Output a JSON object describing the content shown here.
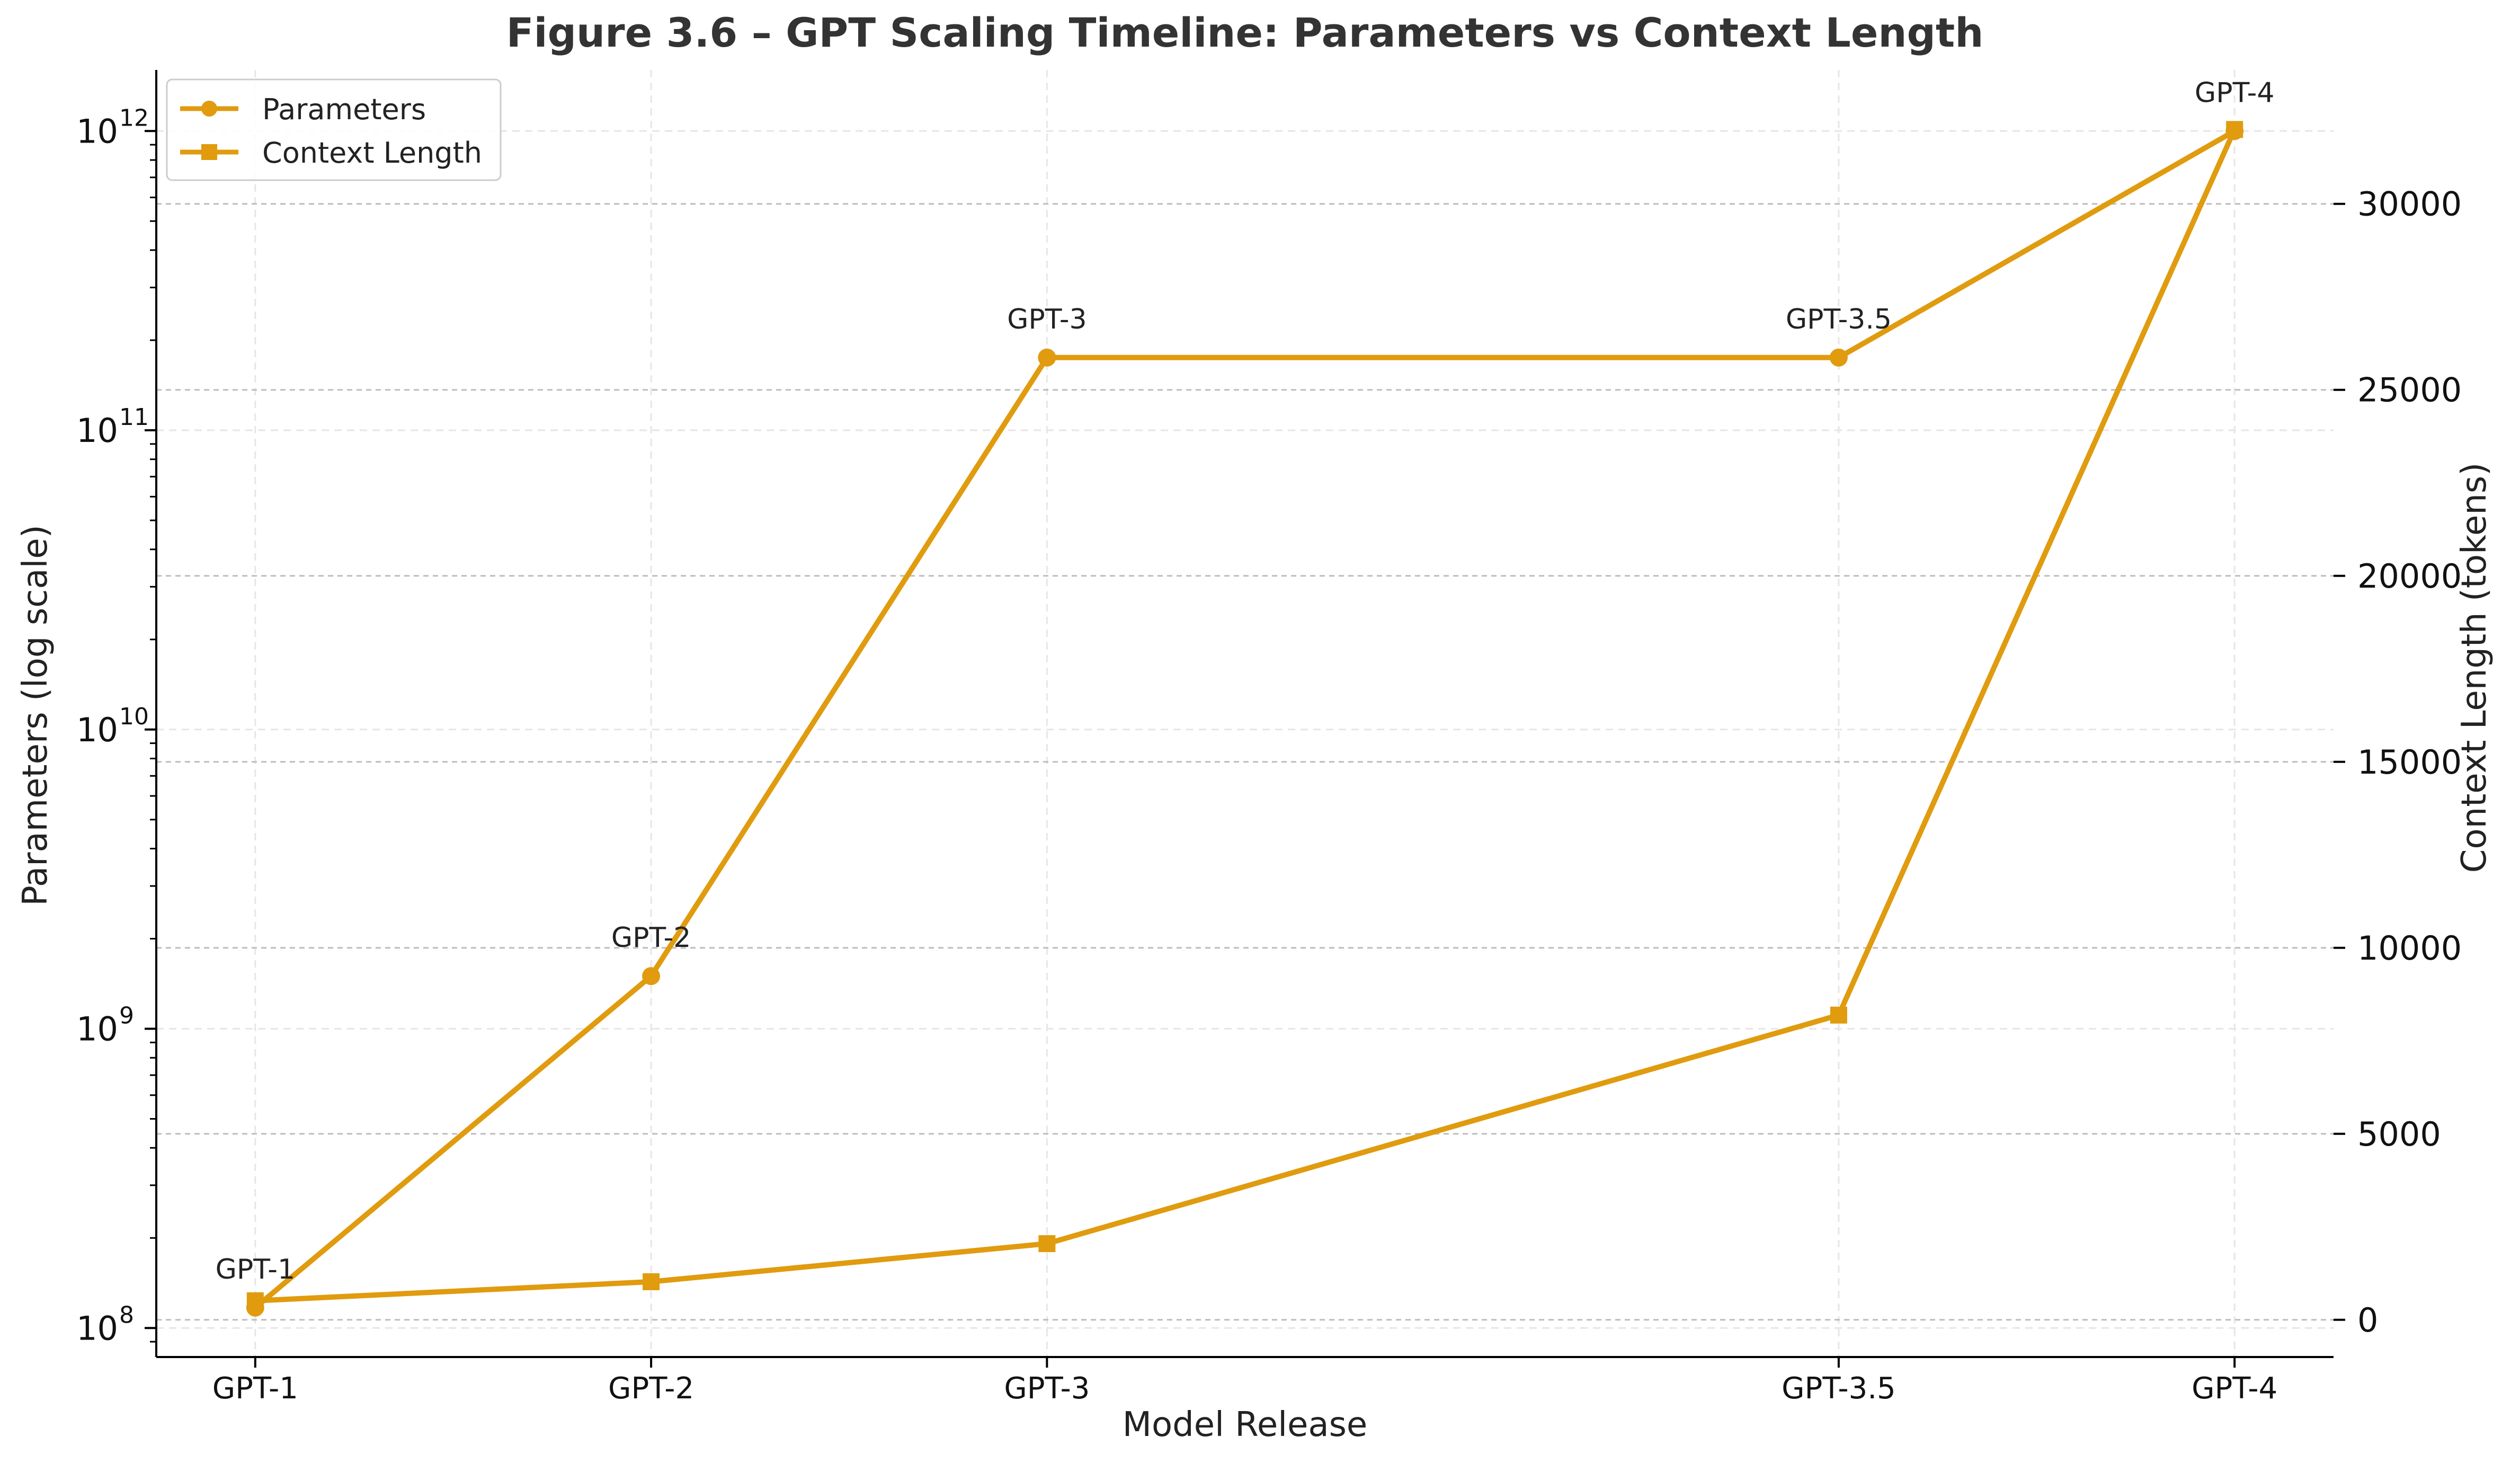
{
  "chart_data": {
    "type": "line",
    "title": "Figure 3.6 – GPT Scaling Timeline: Parameters vs Context Length",
    "xlabel": "Model Release",
    "ylabel": "Parameters (log scale)",
    "y2label": "Context Length (tokens)",
    "x_ticks": [
      {
        "label": "GPT-1",
        "year": 2018
      },
      {
        "label": "GPT-2",
        "year": 2019
      },
      {
        "label": "GPT-3",
        "year": 2020
      },
      {
        "label": "GPT-3.5",
        "year": 2022
      },
      {
        "label": "GPT-4",
        "year": 2023
      }
    ],
    "xlim": [
      2017.75,
      2023.25
    ],
    "y_scale": "log",
    "ylim": [
      80000000,
      1600000000000
    ],
    "y_ticks": [
      {
        "base": "10",
        "exp": "8",
        "value": 100000000
      },
      {
        "base": "10",
        "exp": "9",
        "value": 1000000000
      },
      {
        "base": "10",
        "exp": "10",
        "value": 10000000000
      },
      {
        "base": "10",
        "exp": "11",
        "value": 100000000000
      },
      {
        "base": "10",
        "exp": "12",
        "value": 1000000000000
      }
    ],
    "y2lim": [
      -1000,
      33600
    ],
    "y2_ticks": [
      "0",
      "5000",
      "10000",
      "15000",
      "20000",
      "25000",
      "30000"
    ],
    "grid": true,
    "legend_position": "top-left",
    "color": "#E09B0E",
    "series": [
      {
        "name": "Parameters",
        "axis": "left",
        "marker": "circle",
        "values": [
          117000000,
          1500000000,
          175000000000,
          175000000000,
          1000000000000
        ]
      },
      {
        "name": "Context Length",
        "axis": "right",
        "marker": "square",
        "values": [
          512,
          1024,
          2048,
          8192,
          32000
        ]
      }
    ],
    "annotations": [
      "GPT-1",
      "GPT-2",
      "GPT-3",
      "GPT-3.5",
      "GPT-4"
    ]
  }
}
